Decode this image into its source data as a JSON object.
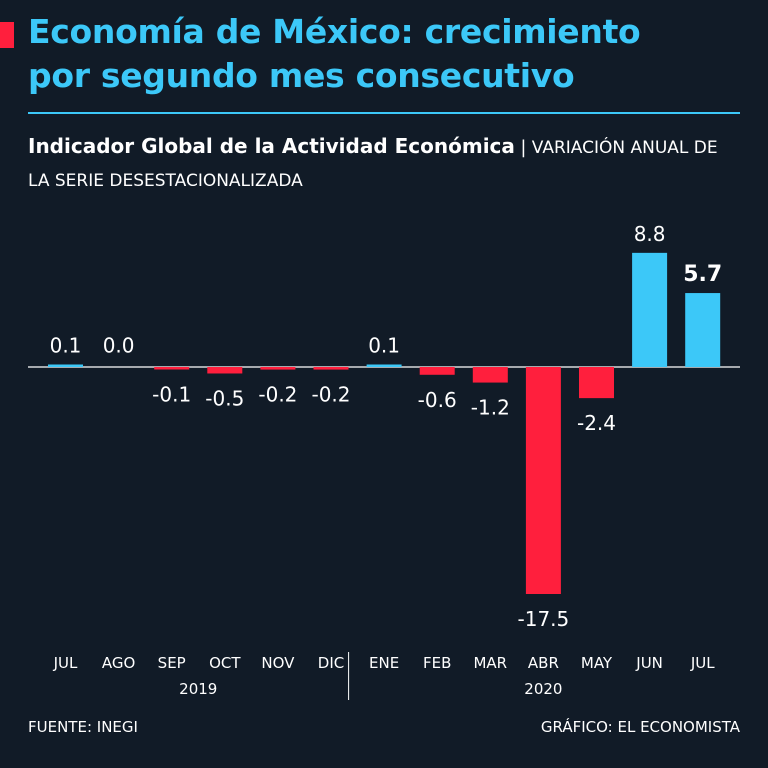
{
  "header": {
    "title_line1": "Economía de México: crecimiento",
    "title_line2": "por segundo mes consecutivo",
    "subtitle_strong": "Indicador Global de la Actividad Económica",
    "subtitle_sep": "|",
    "subtitle_rest": "VARIACIÓN ANUAL DE LA SERIE DESESTACIONALIZADA"
  },
  "footer": {
    "source": "FUENTE: INEGI",
    "credit": "GRÁFICO: EL ECONOMISTA"
  },
  "colors": {
    "background": "#111b27",
    "positive": "#3cc8f8",
    "negative": "#ff1f3d",
    "text": "#ffffff"
  },
  "chart_data": {
    "type": "bar",
    "categories": [
      "JUL",
      "AGO",
      "SEP",
      "OCT",
      "NOV",
      "DIC",
      "ENE",
      "FEB",
      "MAR",
      "ABR",
      "MAY",
      "JUN",
      "JUL"
    ],
    "values": [
      0.1,
      0.0,
      -0.1,
      -0.5,
      -0.2,
      -0.2,
      0.1,
      -0.6,
      -1.2,
      -17.5,
      -2.4,
      8.8,
      5.7
    ],
    "value_labels": [
      "0.1",
      "0.0",
      "-0.1",
      "-0.5",
      "-0.2",
      "-0.2",
      "0.1",
      "-0.6",
      "-1.2",
      "-17.5",
      "-2.4",
      "8.8",
      "5.7"
    ],
    "highlight_index": 12,
    "year_groups": [
      {
        "label": "2019",
        "start": 0,
        "end": 5
      },
      {
        "label": "2020",
        "start": 6,
        "end": 12
      }
    ],
    "ylim": [
      -17.5,
      8.8
    ],
    "grid": false,
    "legend": "none"
  }
}
